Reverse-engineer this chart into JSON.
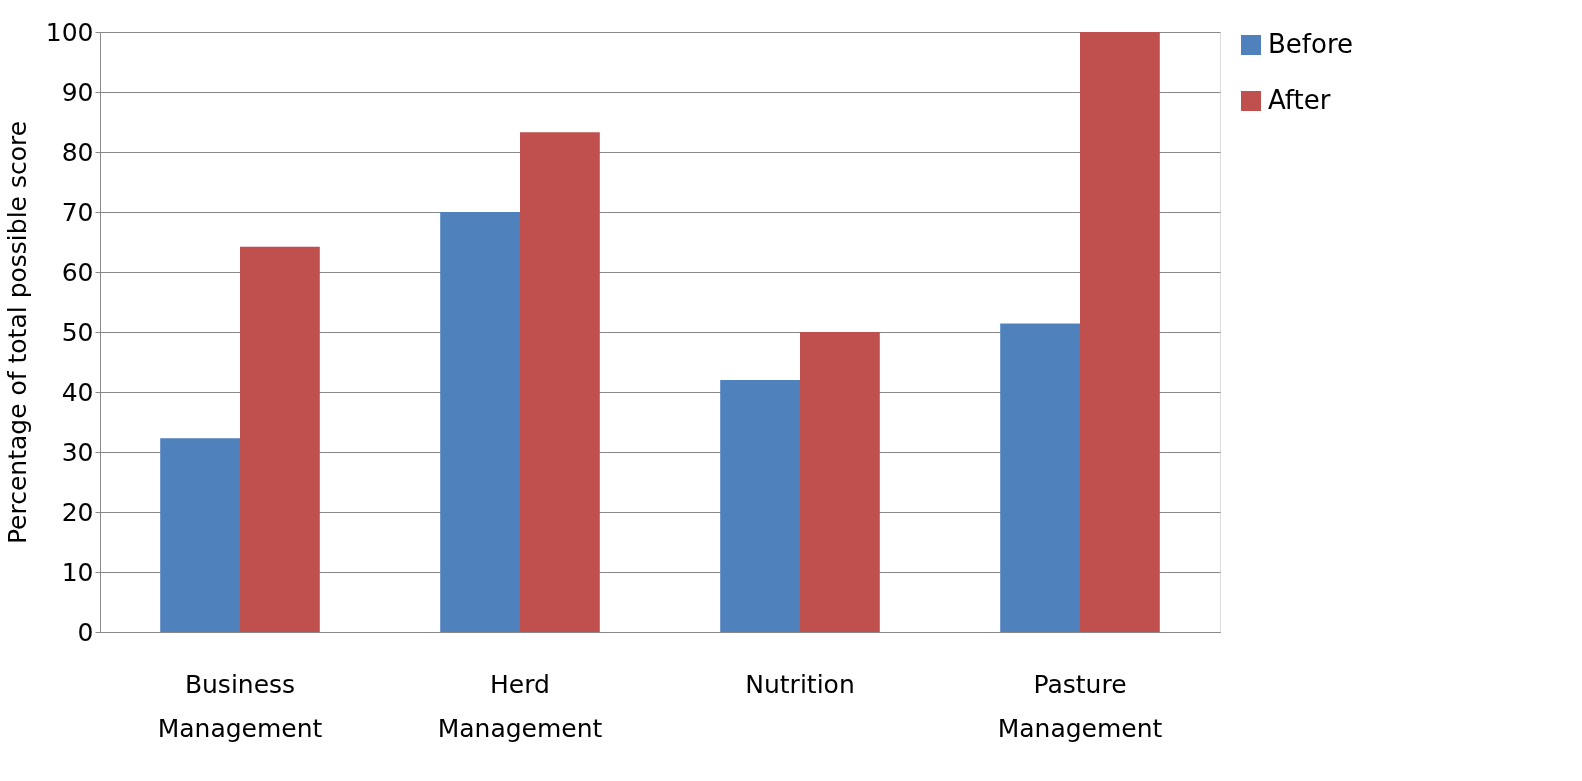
{
  "chart_data": {
    "type": "bar",
    "ylabel": "Percentage of total possible score",
    "categories": [
      "Business Management",
      "Herd Management",
      "Nutrition",
      "Pasture Management"
    ],
    "series": [
      {
        "name": "Before",
        "color": "#4f81bd",
        "values": [
          32.3,
          70,
          42,
          51.4
        ]
      },
      {
        "name": "After",
        "color": "#c0504d",
        "values": [
          64.2,
          83.3,
          50,
          100
        ]
      }
    ],
    "ylim": [
      0,
      100
    ],
    "yticks": [
      0,
      10,
      20,
      30,
      40,
      50,
      60,
      70,
      80,
      90,
      100
    ],
    "grid": "y",
    "legend": "right"
  }
}
